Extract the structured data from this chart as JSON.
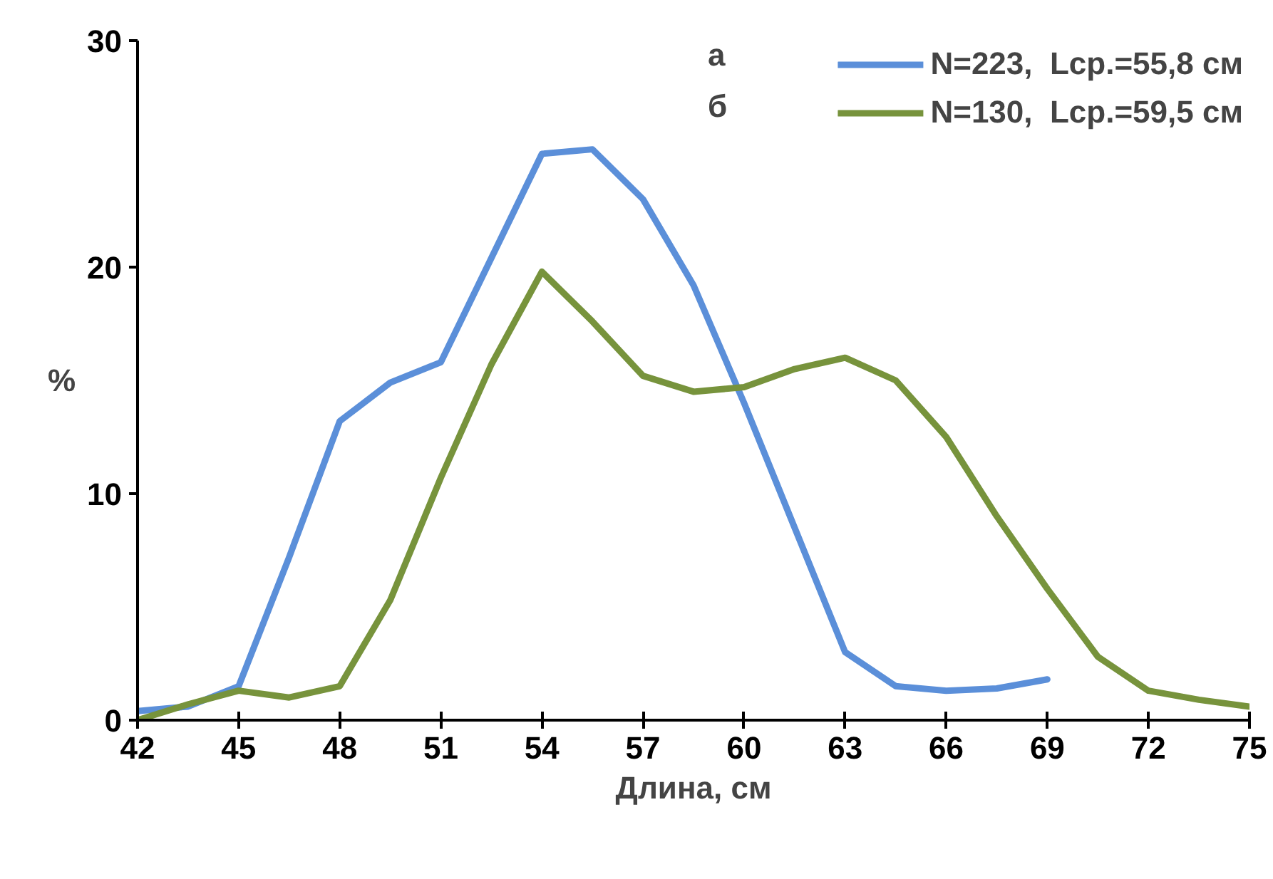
{
  "chart_data": {
    "type": "line",
    "xlabel": "Длина, см",
    "ylabel": "%",
    "xlim": [
      42,
      75
    ],
    "xticks": [
      42,
      45,
      48,
      51,
      54,
      57,
      60,
      63,
      66,
      69,
      72,
      75
    ],
    "ylim": [
      0,
      30
    ],
    "yticks": [
      0,
      10,
      20,
      30
    ],
    "grid": false,
    "legend": "top right",
    "line_style": "solid",
    "marker": "none",
    "annotations": [
      "а",
      "б"
    ],
    "series": [
      {
        "name": "N=223,  Lср.=55,8 см",
        "color": "#5b8fd9",
        "x": [
          42,
          43.5,
          45,
          46.5,
          48,
          49.5,
          51,
          52.5,
          54,
          55.5,
          57,
          58.5,
          60,
          61.5,
          63,
          64.5,
          66,
          67.5,
          69
        ],
        "values": [
          0.4,
          0.6,
          1.5,
          7.2,
          13.2,
          14.9,
          15.8,
          20.4,
          25,
          25.2,
          23,
          19.2,
          14,
          8.5,
          3,
          1.5,
          1.3,
          1.4,
          1.8
        ]
      },
      {
        "name": "N=130,  Lср.=59,5 см",
        "color": "#77933c",
        "x": [
          42,
          43.5,
          45,
          46.5,
          48,
          49.5,
          51,
          52.5,
          54,
          55.5,
          57,
          58.5,
          60,
          61.5,
          63,
          64.5,
          66,
          67.5,
          69,
          70.5,
          72,
          73.5,
          75
        ],
        "values": [
          0,
          0.7,
          1.3,
          1.0,
          1.5,
          5.3,
          10.7,
          15.7,
          19.8,
          17.6,
          15.2,
          14.5,
          14.7,
          15.5,
          16,
          15,
          12.5,
          9,
          5.8,
          2.8,
          1.3,
          0.9,
          0.6
        ]
      }
    ]
  }
}
